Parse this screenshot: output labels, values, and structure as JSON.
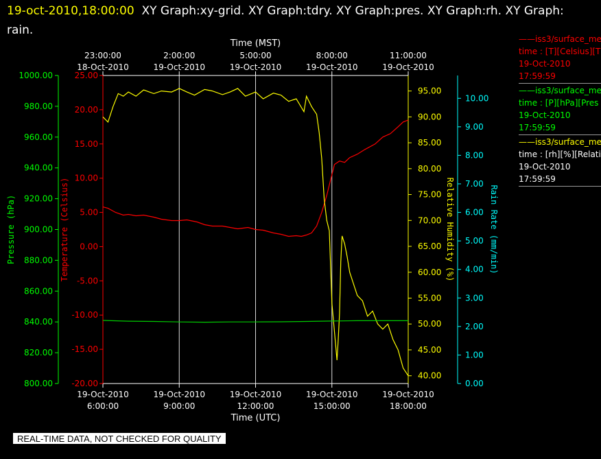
{
  "header": {
    "timestamp": "19-oct-2010,18:00:00",
    "graphs": "XY Graph:xy-grid.  XY Graph:tdry.  XY Graph:pres.  XY Graph:rh.  XY Graph: rain."
  },
  "legend": [
    {
      "color": "#ff0000",
      "lines": [
        "——iss3/surface_me",
        "time : [T][Celsius][T",
        "19-Oct-2010",
        "17:59:59"
      ]
    },
    {
      "color": "#00ff00",
      "lines": [
        "——iss3/surface_me",
        "time : [P][hPa][Pres",
        "19-Oct-2010",
        "17:59:59"
      ]
    },
    {
      "color": "#ffff00",
      "lines": [
        "——iss3/surface_me",
        "time : [rh][%][Relati",
        "19-Oct-2010",
        "17:59:59"
      ]
    }
  ],
  "banner": "REAL-TIME DATA, NOT CHECKED FOR QUALITY",
  "chart_data": {
    "type": "line",
    "grid": true,
    "top_axis": {
      "label": "Time (MST)",
      "ticks": [
        [
          "23:00:00",
          "18-Oct-2010"
        ],
        [
          "2:00:00",
          "19-Oct-2010"
        ],
        [
          "5:00:00",
          "19-Oct-2010"
        ],
        [
          "8:00:00",
          "19-Oct-2010"
        ],
        [
          "11:00:00",
          "19-Oct-2010"
        ]
      ]
    },
    "bottom_axis": {
      "label": "Time (UTC)",
      "ticks": [
        [
          "19-Oct-2010",
          "6:00:00"
        ],
        [
          "19-Oct-2010",
          "9:00:00"
        ],
        [
          "19-Oct-2010",
          "12:00:00"
        ],
        [
          "19-Oct-2010",
          "15:00:00"
        ],
        [
          "19-Oct-2010",
          "18:00:00"
        ]
      ],
      "range_hours": [
        6,
        18
      ]
    },
    "axes": {
      "pressure": {
        "label": "Pressure (hPa)",
        "color": "#00ff00",
        "min": 800,
        "max": 1000,
        "ticks": [
          "1000.00",
          "980.00",
          "960.00",
          "940.00",
          "920.00",
          "900.00",
          "880.00",
          "860.00",
          "840.00",
          "820.00",
          "800.00"
        ]
      },
      "temperature": {
        "label": "Temperature (Celsius)",
        "color": "#ff0000",
        "min": -20,
        "max": 25,
        "ticks": [
          "25.00",
          "20.00",
          "15.00",
          "10.00",
          "5.00",
          "0.00",
          "-5.00",
          "-10.00",
          "-15.00",
          "-20.00"
        ]
      },
      "rh": {
        "label": "Relative Humidity (%)",
        "color": "#ffff00",
        "min": 38.5,
        "max": 98.0,
        "ticks": [
          "95.00",
          "90.00",
          "85.00",
          "80.00",
          "75.00",
          "70.00",
          "65.00",
          "60.00",
          "55.00",
          "50.00",
          "45.00",
          "40.00"
        ]
      },
      "rain": {
        "label": "Rain Rate (mm/min)",
        "color": "#00ffff",
        "min": 0,
        "max": 10.8,
        "ticks": [
          "10.00",
          "9.00",
          "8.00",
          "7.00",
          "6.00",
          "5.00",
          "4.00",
          "3.00",
          "2.00",
          "1.00",
          "0.00"
        ]
      }
    },
    "series": [
      {
        "axis": "temperature",
        "color": "#ff0000",
        "x": [
          6.0,
          6.2,
          6.5,
          6.8,
          7.0,
          7.3,
          7.6,
          8.0,
          8.3,
          8.7,
          9.0,
          9.3,
          9.7,
          10.0,
          10.3,
          10.7,
          11.0,
          11.3,
          11.7,
          12.0,
          12.3,
          12.7,
          13.0,
          13.3,
          13.6,
          13.8,
          14.0,
          14.2,
          14.4,
          14.6,
          14.8,
          14.9,
          15.0,
          15.1,
          15.3,
          15.5,
          15.7,
          16.0,
          16.3,
          16.7,
          17.0,
          17.3,
          17.6,
          17.8,
          18.0
        ],
        "y": [
          5.8,
          5.6,
          5.0,
          4.6,
          4.7,
          4.5,
          4.6,
          4.3,
          4.0,
          3.8,
          3.8,
          3.9,
          3.6,
          3.2,
          3.0,
          3.0,
          2.8,
          2.6,
          2.8,
          2.5,
          2.4,
          2.0,
          1.8,
          1.5,
          1.6,
          1.5,
          1.7,
          2.0,
          3.0,
          5.0,
          7.5,
          9.0,
          10.5,
          12.0,
          12.5,
          12.3,
          13.0,
          13.5,
          14.2,
          15.0,
          16.0,
          16.5,
          17.5,
          18.2,
          18.5
        ]
      },
      {
        "axis": "rh",
        "color": "#ffff00",
        "x": [
          6.0,
          6.2,
          6.4,
          6.6,
          6.8,
          7.0,
          7.3,
          7.6,
          8.0,
          8.3,
          8.7,
          9.0,
          9.3,
          9.6,
          10.0,
          10.3,
          10.7,
          11.0,
          11.3,
          11.6,
          12.0,
          12.3,
          12.7,
          13.0,
          13.3,
          13.6,
          13.9,
          14.0,
          14.2,
          14.4,
          14.5,
          14.6,
          14.7,
          14.8,
          14.9,
          15.0,
          15.1,
          15.2,
          15.25,
          15.3,
          15.35,
          15.4,
          15.5,
          15.6,
          15.7,
          15.8,
          16.0,
          16.2,
          16.4,
          16.6,
          16.8,
          17.0,
          17.2,
          17.4,
          17.6,
          17.8,
          18.0
        ],
        "y": [
          90.0,
          89.0,
          92.0,
          94.5,
          94.0,
          94.8,
          94.0,
          95.2,
          94.5,
          95.0,
          94.8,
          95.5,
          94.8,
          94.2,
          95.3,
          95.0,
          94.3,
          94.8,
          95.5,
          94.0,
          94.8,
          93.5,
          94.6,
          94.2,
          93.0,
          93.5,
          91.0,
          94.0,
          92.0,
          90.5,
          87.0,
          82.0,
          74.0,
          70.0,
          68.0,
          54.0,
          48.5,
          43.0,
          47.0,
          52.0,
          62.0,
          67.0,
          65.5,
          63.0,
          60.0,
          58.5,
          55.5,
          54.5,
          51.5,
          52.5,
          50.0,
          49.0,
          50.0,
          47.0,
          45.0,
          41.5,
          40.0
        ]
      },
      {
        "axis": "pressure",
        "color": "#00cc00",
        "x": [
          6.0,
          7.0,
          8.0,
          9.0,
          10.0,
          11.0,
          12.0,
          13.0,
          14.0,
          15.0,
          16.0,
          17.0,
          18.0
        ],
        "y": [
          841.0,
          840.5,
          840.3,
          840.0,
          839.8,
          840.0,
          840.0,
          840.1,
          840.3,
          840.6,
          840.8,
          840.8,
          840.8
        ]
      }
    ]
  }
}
